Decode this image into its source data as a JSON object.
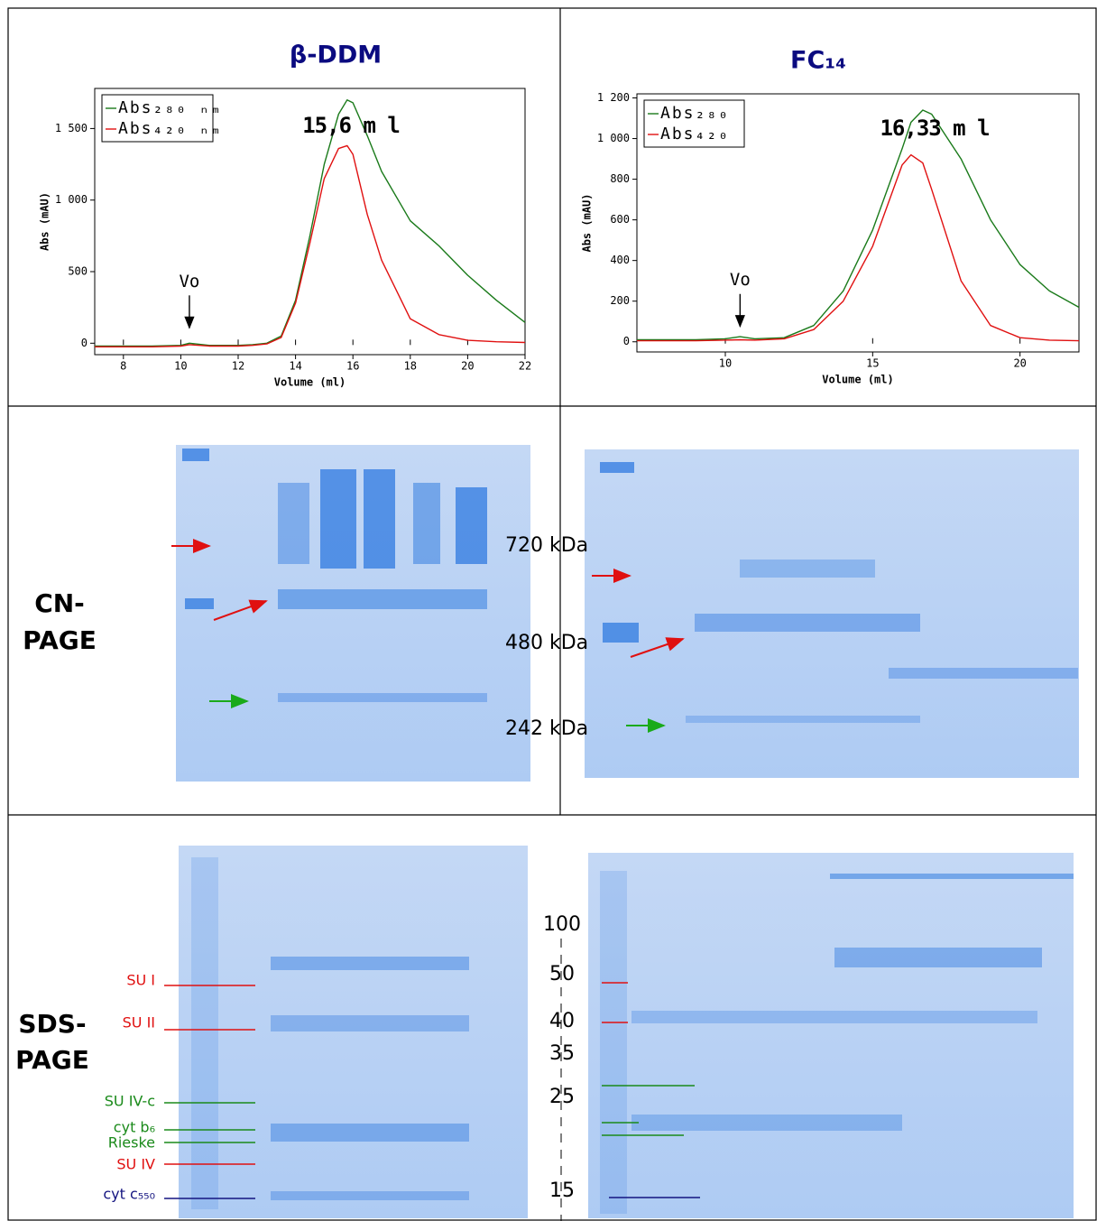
{
  "chart_data": [
    {
      "type": "line",
      "title": "β-DDM",
      "xlabel": "Volume (ml)",
      "ylabel": "Abs (mAU)",
      "x": [
        7,
        8,
        9,
        10,
        10.3,
        11,
        12,
        12.5,
        13,
        13.5,
        14,
        14.5,
        15,
        15.5,
        15.8,
        16,
        16.5,
        17,
        18,
        19,
        20,
        21,
        22
      ],
      "series": [
        {
          "name": "Abs₂₈₀ ₙₘ",
          "color": "#1a7a1a",
          "values": [
            -20,
            -20,
            -20,
            -15,
            0,
            -15,
            -15,
            -10,
            0,
            50,
            300,
            750,
            1250,
            1600,
            1700,
            1680,
            1450,
            1200,
            855,
            680,
            475,
            300,
            145
          ]
        },
        {
          "name": "Abs₄₂₀ ₙₘ",
          "color": "#e01010",
          "values": [
            -25,
            -25,
            -25,
            -20,
            -10,
            -20,
            -20,
            -15,
            -5,
            40,
            280,
            700,
            1150,
            1360,
            1380,
            1320,
            900,
            580,
            170,
            60,
            20,
            10,
            5
          ]
        }
      ],
      "xlim": [
        7,
        22
      ],
      "ylim": [
        -80,
        1780
      ],
      "xticks": [
        8,
        10,
        12,
        14,
        16,
        18,
        20,
        22
      ],
      "yticks": [
        0,
        500,
        {
          "value": 1000,
          "label": "1 000"
        },
        {
          "value": 1500,
          "label": "1 500"
        }
      ],
      "annotations": [
        "15,6 m l",
        "Vo"
      ],
      "legend": "upper-left"
    },
    {
      "type": "line",
      "title": "FC₁₄",
      "xlabel": "Volume (ml)",
      "ylabel": "Abs (mAU)",
      "x": [
        7,
        9,
        10,
        10.5,
        11,
        12,
        13,
        14,
        15,
        16,
        16.3,
        16.7,
        17,
        18,
        19,
        20,
        21,
        22
      ],
      "series": [
        {
          "name": "Abs₂₈₀",
          "color": "#1a7a1a",
          "values": [
            10,
            10,
            15,
            25,
            15,
            20,
            80,
            250,
            550,
            950,
            1080,
            1140,
            1120,
            900,
            600,
            380,
            250,
            170
          ]
        },
        {
          "name": "Abs₄₂₀",
          "color": "#e01010",
          "values": [
            5,
            5,
            8,
            10,
            8,
            15,
            60,
            200,
            470,
            870,
            920,
            880,
            750,
            300,
            80,
            20,
            8,
            5
          ]
        }
      ],
      "xlim": [
        7,
        22
      ],
      "ylim": [
        -50,
        1220
      ],
      "xticks": [
        10,
        15,
        20
      ],
      "yticks": [
        0,
        200,
        400,
        600,
        800,
        {
          "value": 1000,
          "label": "1 000"
        },
        {
          "value": 1200,
          "label": "1 200"
        }
      ],
      "annotations": [
        "16,33 m l",
        "Vo"
      ],
      "legend": "upper-left"
    }
  ],
  "cn_label": [
    "CN-",
    "PAGE"
  ],
  "sds_label": [
    "SDS-",
    "PAGE"
  ],
  "cn_markers": [
    "720 kDa",
    "480 kDa",
    "242 kDa"
  ],
  "sds_markers": [
    "100",
    "50",
    "40",
    "35",
    "25",
    "15"
  ],
  "sds_bands": [
    {
      "label": "SU I",
      "color": "#e01010"
    },
    {
      "label": "SU II",
      "color": "#e01010"
    },
    {
      "label": "SU IV-c",
      "color": "#1a8a1a"
    },
    {
      "label": "cyt b₆",
      "color": "#1a8a1a"
    },
    {
      "label": "Rieske",
      "color": "#1a8a1a"
    },
    {
      "label": "SU IV",
      "color": "#e01010"
    },
    {
      "label": "cyt c₅₅₀",
      "color": "#141480"
    }
  ]
}
